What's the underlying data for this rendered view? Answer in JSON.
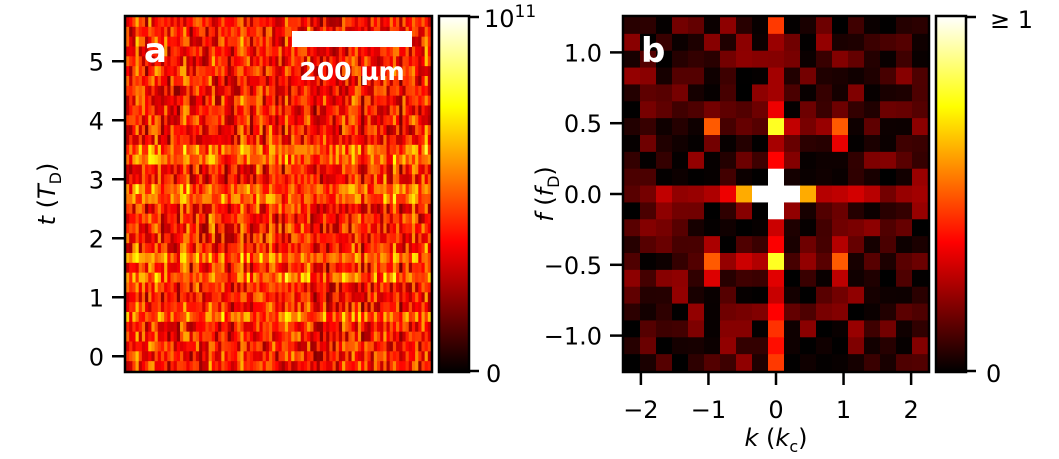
{
  "chart_data": [
    {
      "type": "heatmap",
      "panel_label": "a",
      "colormap": "hot",
      "ylabel": {
        "main": "t",
        "unit": "T",
        "unit_subscript": "D"
      },
      "ylim": [
        -0.25,
        5.75
      ],
      "yticks": [
        0,
        1,
        2,
        3,
        4,
        5
      ],
      "ytick_labels": [
        "0",
        "1",
        "2",
        "3",
        "4",
        "5"
      ],
      "xticks_shown": false,
      "scalebar": {
        "label": "200 µm",
        "color": "#ffffff"
      },
      "colorbar": {
        "min_label": "0",
        "max_label_base": "10",
        "max_label_exponent": "11",
        "range": [
          0,
          100000000000.0
        ]
      },
      "pattern": {
        "description_free": true,
        "columns": 96,
        "rows": 36,
        "bright_time_bands": [
          2.75,
          1.7,
          3.45,
          1.35,
          0.7
        ],
        "bright_column_regions": [
          {
            "x_start": 0.5,
            "x_end": 0.58,
            "t_start": 0.0,
            "t_end": 2.6
          }
        ],
        "mean_intensity": 0.42
      }
    },
    {
      "type": "heatmap",
      "panel_label": "b",
      "colormap": "hot",
      "xlabel": {
        "main": "k",
        "unit": "k",
        "unit_subscript": "c"
      },
      "ylabel": {
        "main": "f",
        "unit": "f",
        "unit_subscript": "D"
      },
      "xlim": [
        -2.25,
        2.25
      ],
      "ylim": [
        -1.25,
        1.25
      ],
      "xticks": [
        -2,
        -1,
        0,
        1,
        2
      ],
      "xtick_labels": [
        "−2",
        "−1",
        "0",
        "1",
        "2"
      ],
      "yticks": [
        -1.0,
        -0.5,
        0.0,
        0.5,
        1.0
      ],
      "ytick_labels": [
        "−1.0",
        "−0.5",
        "0.0",
        "0.5",
        "1.0"
      ],
      "colorbar": {
        "min_label": "0",
        "max_label": "≥ 1",
        "range": [
          0,
          1
        ]
      },
      "grid": {
        "kx_count": 19,
        "f_count": 21,
        "dk": 0.25,
        "df": 0.1167
      },
      "peaks": [
        {
          "k": 0,
          "f": 0.0,
          "value": 1.0
        },
        {
          "k": -0.25,
          "f": 0.0,
          "value": 1.0
        },
        {
          "k": 0.25,
          "f": 0.0,
          "value": 1.0
        },
        {
          "k": 0,
          "f": 0.12,
          "value": 1.0
        },
        {
          "k": 0,
          "f": -0.12,
          "value": 1.0
        },
        {
          "k": -0.5,
          "f": 0.0,
          "value": 0.62
        },
        {
          "k": 0.5,
          "f": 0.0,
          "value": 0.62
        },
        {
          "k": 0,
          "f": 0.5,
          "value": 0.78
        },
        {
          "k": 0,
          "f": -0.5,
          "value": 0.78
        },
        {
          "k": -1.0,
          "f": 0.5,
          "value": 0.5
        },
        {
          "k": 1.0,
          "f": 0.5,
          "value": 0.5
        },
        {
          "k": -1.0,
          "f": -0.5,
          "value": 0.5
        },
        {
          "k": 1.0,
          "f": -0.5,
          "value": 0.5
        },
        {
          "k": 0,
          "f": 1.17,
          "value": 0.45
        },
        {
          "k": 0,
          "f": -1.17,
          "value": 0.45
        }
      ]
    }
  ]
}
